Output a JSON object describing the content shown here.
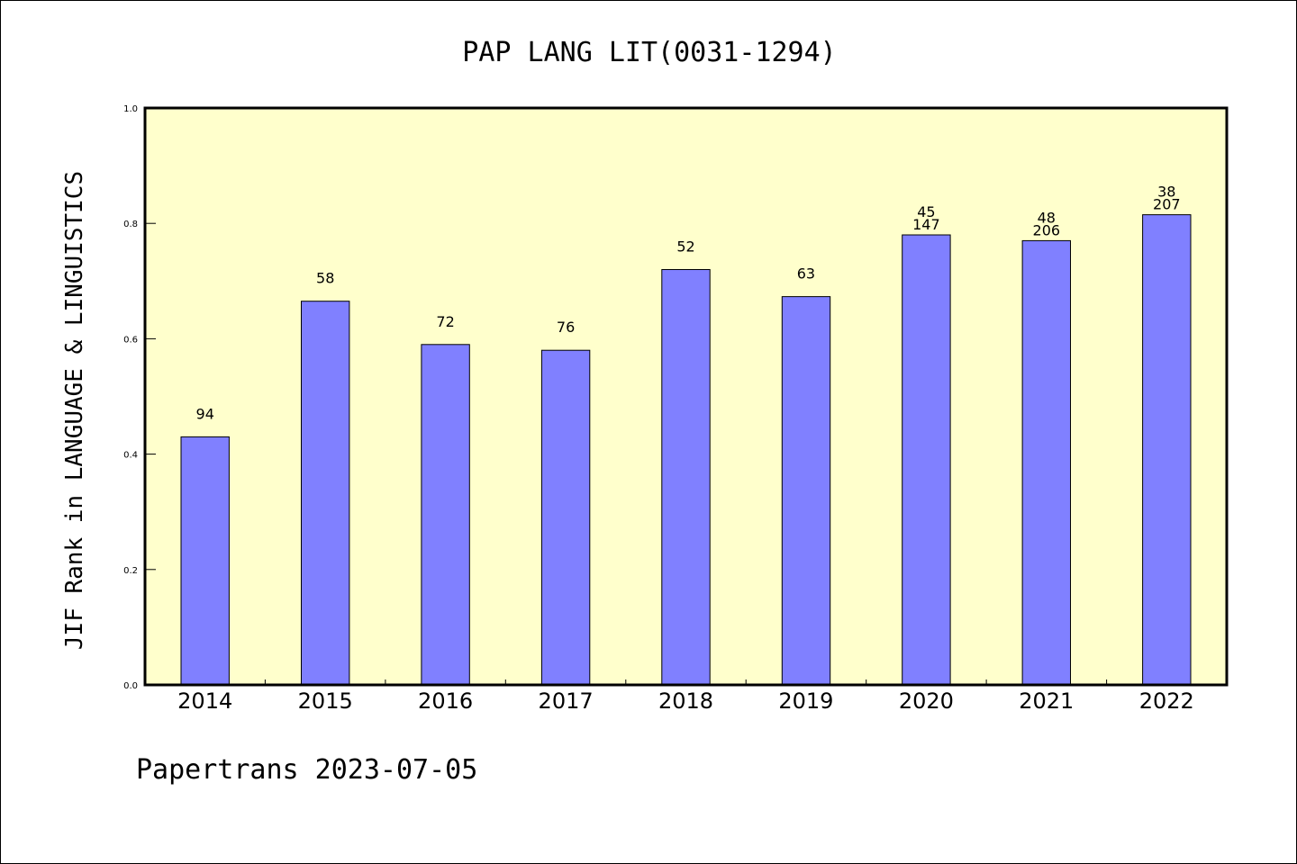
{
  "chart_data": {
    "type": "bar",
    "title": "PAP LANG LIT(0031-1294)",
    "xlabel": "",
    "ylabel": "JIF Rank in LANGUAGE & LINGUISTICS",
    "ylim": [
      0,
      1.0
    ],
    "yticks": [
      "0.0",
      "0.2",
      "0.4",
      "0.6",
      "0.8",
      "1.0"
    ],
    "categories": [
      "2014",
      "2015",
      "2016",
      "2017",
      "2018",
      "2019",
      "2020",
      "2021",
      "2022"
    ],
    "values": [
      0.43,
      0.665,
      0.59,
      0.58,
      0.72,
      0.673,
      0.78,
      0.77,
      0.815
    ],
    "labels": [
      [
        "94"
      ],
      [
        "58"
      ],
      [
        "72"
      ],
      [
        "76"
      ],
      [
        "52"
      ],
      [
        "63"
      ],
      [
        "45",
        "147"
      ],
      [
        "48",
        "206"
      ],
      [
        "38",
        "207"
      ]
    ],
    "grid": false,
    "colors": {
      "bar": "#8080ff",
      "plot_background": "#ffffcc",
      "axis": "#000000"
    }
  },
  "footer": {
    "text": "Papertrans 2023-07-05"
  }
}
